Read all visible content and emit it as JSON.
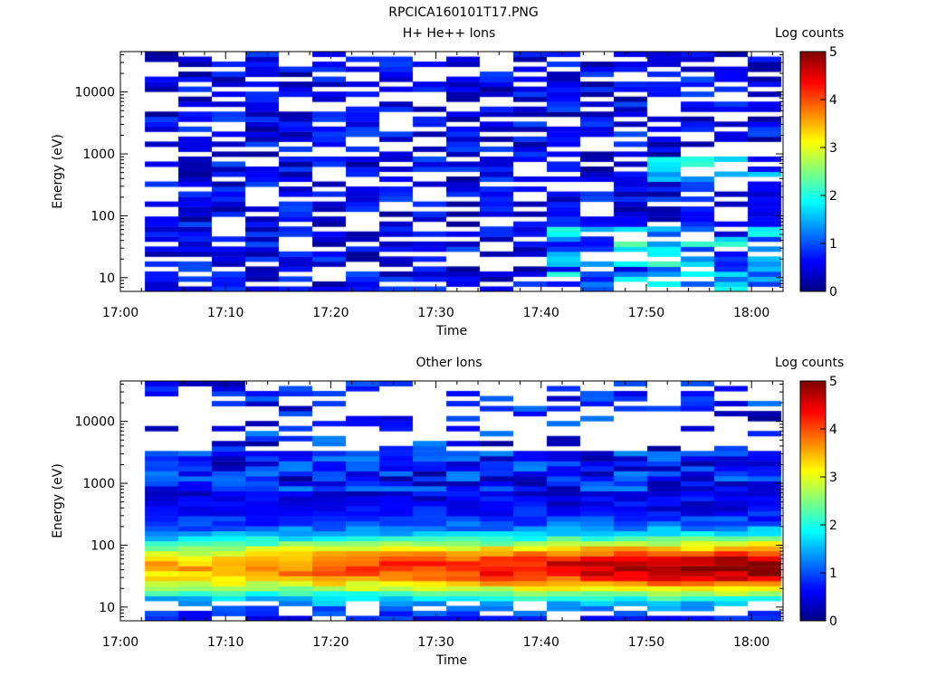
{
  "page": {
    "title": "RPCICA160101T17.PNG"
  },
  "chart_data": [
    {
      "type": "heatmap",
      "title": "H+ He++ Ions",
      "xlabel": "Time",
      "ylabel": "Energy (eV)",
      "x_ticks": [
        "17:00",
        "17:10",
        "17:20",
        "17:30",
        "17:40",
        "17:50",
        "18:00"
      ],
      "y_ticks": [
        "10",
        "100",
        "1000",
        "10000"
      ],
      "y_scale": "log",
      "colorbar": {
        "label": "Log counts",
        "ticks": [
          "0",
          "1",
          "2",
          "3",
          "4",
          "5"
        ],
        "range": [
          0,
          5
        ]
      },
      "xlim": [
        "17:00",
        "18:03"
      ],
      "ylim": [
        6,
        45000
      ],
      "seed": 11,
      "profile": "hplus"
    },
    {
      "type": "heatmap",
      "title": "Other Ions",
      "xlabel": "Time",
      "ylabel": "Energy (eV)",
      "x_ticks": [
        "17:00",
        "17:10",
        "17:20",
        "17:30",
        "17:40",
        "17:50",
        "18:00"
      ],
      "y_ticks": [
        "10",
        "100",
        "1000",
        "10000"
      ],
      "y_scale": "log",
      "colorbar": {
        "label": "Log counts",
        "ticks": [
          "0",
          "1",
          "2",
          "3",
          "4",
          "5"
        ],
        "range": [
          0,
          5
        ]
      },
      "xlim": [
        "17:00",
        "18:03"
      ],
      "ylim": [
        6,
        45000
      ],
      "seed": 29,
      "profile": "other"
    }
  ]
}
